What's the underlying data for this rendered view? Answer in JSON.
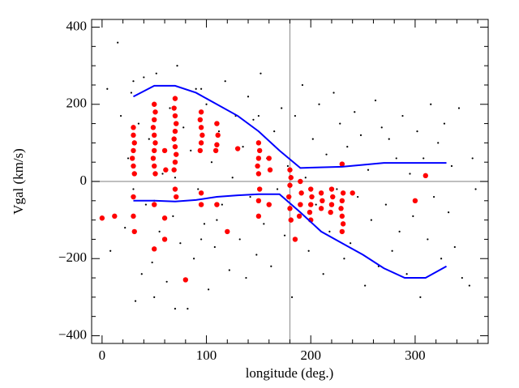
{
  "chart_data": {
    "type": "scatter",
    "xlabel": "longitude (deg.)",
    "ylabel": "Vgal (km/s)",
    "xlim": [
      -10,
      370
    ],
    "ylim": [
      -420,
      420
    ],
    "xticks": [
      0,
      100,
      200,
      300
    ],
    "yticks": [
      {
        "value": -400,
        "label": "−400"
      },
      {
        "value": -200,
        "label": "−200"
      },
      0,
      200,
      400
    ],
    "xminorticks": [
      20,
      40,
      60,
      80,
      120,
      140,
      160,
      180,
      220,
      240,
      260,
      280,
      320,
      340,
      360
    ],
    "yminorticks": [
      -350,
      -300,
      -250,
      -150,
      -100,
      -50,
      50,
      100,
      150,
      250,
      300,
      350
    ],
    "reference_lines": {
      "x": 180,
      "y": 0,
      "color": "#999999"
    },
    "series": [
      {
        "color": "#000000",
        "size": 1.1,
        "x": [
          5,
          8,
          15,
          18,
          22,
          25,
          28,
          32,
          35,
          38,
          40,
          42,
          45,
          48,
          52,
          55,
          58,
          62,
          65,
          68,
          72,
          75,
          78,
          82,
          85,
          88,
          90,
          92,
          98,
          100,
          102,
          105,
          108,
          112,
          115,
          118,
          122,
          125,
          128,
          132,
          135,
          138,
          140,
          142,
          145,
          148,
          152,
          155,
          158,
          162,
          165,
          168,
          172,
          175,
          178,
          182,
          185,
          188,
          192,
          195,
          198,
          202,
          205,
          208,
          212,
          215,
          218,
          222,
          225,
          228,
          232,
          235,
          238,
          242,
          245,
          248,
          252,
          255,
          258,
          262,
          265,
          268,
          272,
          275,
          278,
          282,
          285,
          288,
          292,
          295,
          298,
          302,
          305,
          308,
          312,
          315,
          318,
          322,
          325,
          328,
          332,
          335,
          338,
          342,
          345,
          352,
          355,
          358,
          30,
          50,
          70,
          95,
          110,
          150,
          30,
          50,
          70,
          95
        ],
        "values": [
          240,
          -180,
          360,
          170,
          -120,
          60,
          230,
          -310,
          150,
          -240,
          270,
          -60,
          110,
          -210,
          280,
          -130,
          20,
          -260,
          190,
          -90,
          300,
          -160,
          140,
          -330,
          80,
          -200,
          240,
          -20,
          -110,
          200,
          -280,
          50,
          -170,
          130,
          -60,
          260,
          -230,
          10,
          170,
          -150,
          90,
          -250,
          220,
          -40,
          160,
          -190,
          280,
          -110,
          60,
          -220,
          130,
          -20,
          190,
          -140,
          40,
          -300,
          170,
          -90,
          250,
          10,
          -180,
          110,
          -60,
          200,
          -240,
          70,
          -130,
          230,
          -20,
          150,
          -200,
          90,
          -160,
          180,
          -40,
          120,
          -270,
          30,
          -100,
          210,
          -220,
          140,
          -60,
          110,
          -180,
          60,
          -130,
          170,
          -240,
          20,
          -90,
          130,
          -300,
          60,
          -150,
          200,
          -40,
          100,
          -200,
          150,
          -80,
          40,
          -170,
          190,
          -250,
          -270,
          60,
          -20,
          260,
          -300,
          -330,
          240,
          -100,
          170,
          -20,
          -50,
          10,
          -150
        ]
      },
      {
        "color": "#ff0000",
        "size": 3.2,
        "x": [
          30,
          30,
          31,
          30,
          29,
          30,
          31,
          30,
          30,
          31,
          50,
          51,
          50,
          49,
          50,
          51,
          50,
          49,
          50,
          51,
          50,
          50,
          60,
          61,
          60,
          60,
          70,
          69,
          70,
          71,
          70,
          69,
          70,
          71,
          70,
          69,
          70,
          71,
          95,
          94,
          95,
          96,
          95,
          94,
          95,
          95,
          110,
          111,
          110,
          109,
          110,
          120,
          130,
          150,
          151,
          150,
          149,
          150,
          151,
          150,
          150,
          160,
          161,
          160,
          180,
          181,
          180,
          179,
          180,
          181,
          190,
          191,
          190,
          189,
          200,
          201,
          200,
          199,
          200,
          210,
          211,
          210,
          220,
          221,
          220,
          219,
          230,
          231,
          230,
          229,
          230,
          231,
          230,
          240,
          0,
          12,
          80,
          310,
          300,
          185
        ],
        "values": [
          140,
          120,
          100,
          80,
          60,
          40,
          20,
          -40,
          -90,
          -130,
          200,
          180,
          160,
          140,
          120,
          100,
          80,
          60,
          40,
          20,
          -60,
          -175,
          80,
          30,
          -95,
          -150,
          215,
          190,
          170,
          150,
          130,
          110,
          90,
          70,
          50,
          30,
          -20,
          -40,
          180,
          160,
          140,
          120,
          100,
          80,
          -30,
          -60,
          150,
          120,
          95,
          80,
          -60,
          -130,
          85,
          100,
          80,
          60,
          40,
          20,
          -20,
          -50,
          -90,
          60,
          30,
          -60,
          30,
          10,
          -10,
          -40,
          -70,
          -100,
          0,
          -30,
          -60,
          -90,
          -20,
          -40,
          -60,
          -80,
          -100,
          -30,
          -50,
          -70,
          -20,
          -40,
          -60,
          -80,
          45,
          -30,
          -50,
          -70,
          -90,
          -110,
          -130,
          -30,
          -95,
          -90,
          -255,
          15,
          -50,
          -150
        ]
      }
    ],
    "lines": [
      {
        "color": "#0000ff",
        "x": [
          30,
          50,
          70,
          90,
          110,
          130,
          150,
          170,
          190,
          230,
          270,
          330
        ],
        "values": [
          220,
          248,
          248,
          230,
          200,
          170,
          130,
          80,
          35,
          38,
          48,
          48
        ]
      },
      {
        "color": "#0000ff",
        "x": [
          30,
          50,
          70,
          90,
          110,
          130,
          150,
          170,
          190,
          210,
          230,
          250,
          270,
          290,
          310,
          330
        ],
        "values": [
          -50,
          -50,
          -52,
          -48,
          -40,
          -36,
          -33,
          -33,
          -80,
          -130,
          -160,
          -190,
          -225,
          -250,
          -250,
          -220
        ]
      }
    ]
  }
}
